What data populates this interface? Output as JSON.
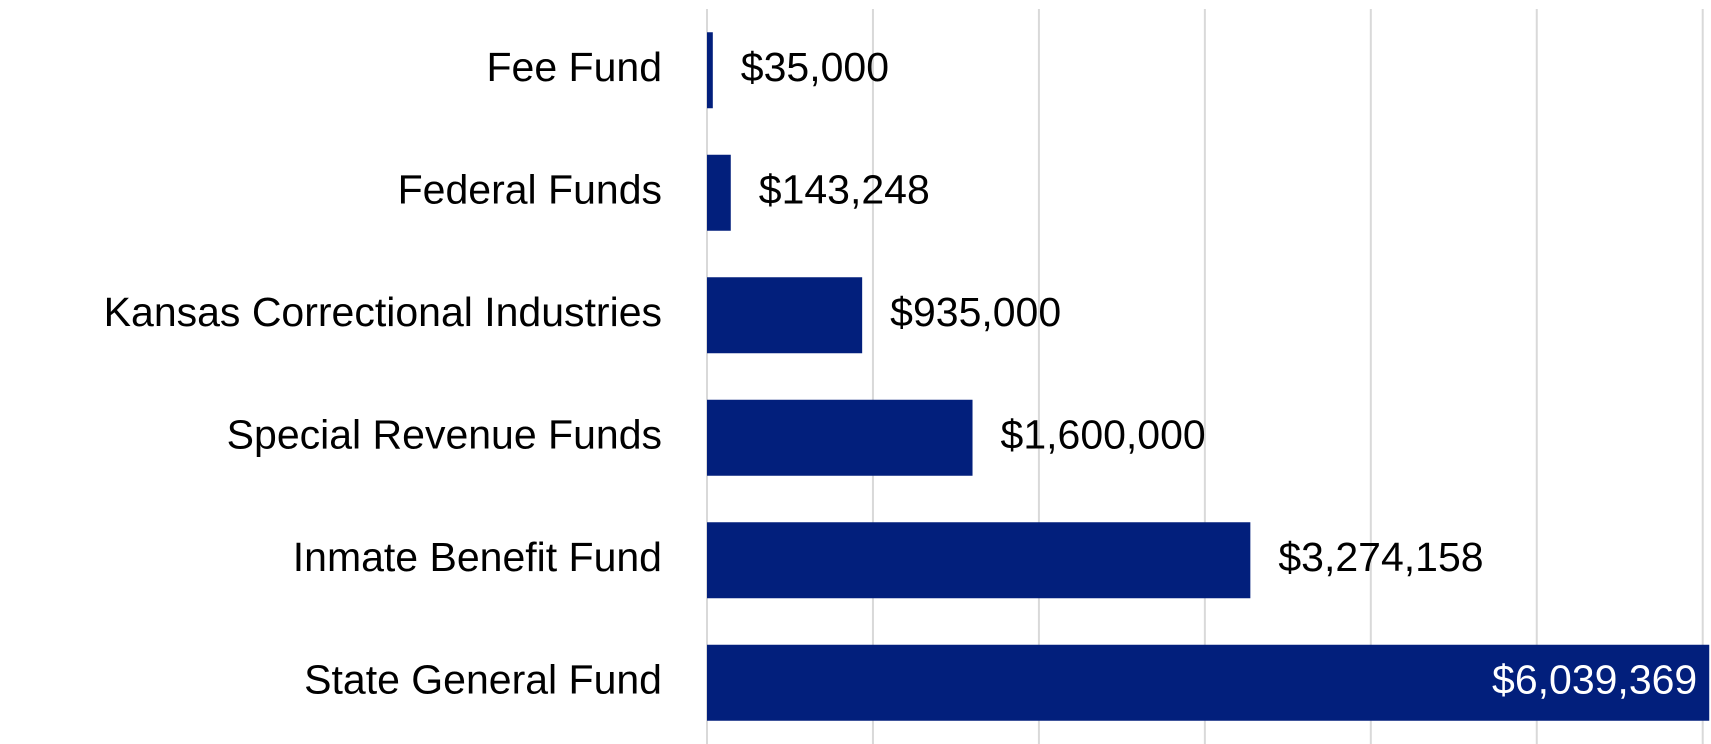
{
  "chart_data": {
    "type": "barh",
    "categories": [
      "Fee Fund",
      "Federal Funds",
      "Kansas Correctional Industries",
      "Special Revenue Funds",
      "Inmate Benefit Fund",
      "State General Fund"
    ],
    "values": [
      35000,
      143248,
      935000,
      1600000,
      3274158,
      6039369
    ],
    "value_labels": [
      "$35,000",
      "$143,248",
      "$935,000",
      "$1,600,000",
      "$3,274,158",
      "$6,039,369"
    ],
    "color": "#021f7c",
    "xlim": [
      0,
      6050000
    ],
    "xticks": [
      0,
      1000000,
      2000000,
      3000000,
      4000000,
      5000000,
      6000000
    ],
    "grid": true
  }
}
